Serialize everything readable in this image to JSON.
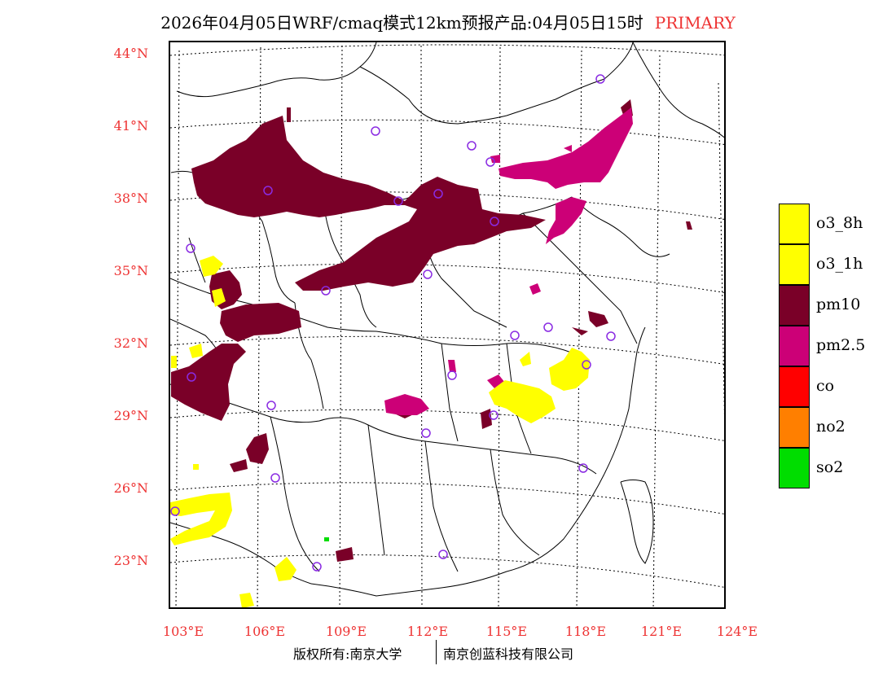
{
  "title": {
    "text": "2026年04月05日WRF/cmaq模式12km预报产品:04月05日15时",
    "tag": "PRIMARY"
  },
  "lat_labels": [
    "44°N",
    "41°N",
    "38°N",
    "35°N",
    "32°N",
    "29°N",
    "26°N",
    "23°N"
  ],
  "lon_labels": [
    "103°E",
    "106°E",
    "109°E",
    "112°E",
    "115°E",
    "118°E",
    "121°E",
    "124°E"
  ],
  "legend": [
    {
      "label": "o3_8h",
      "color": "#ffff00"
    },
    {
      "label": "o3_1h",
      "color": "#ffff00"
    },
    {
      "label": "pm10",
      "color": "#7a0028"
    },
    {
      "label": "pm2.5",
      "color": "#cc0077"
    },
    {
      "label": "co",
      "color": "#ff0000"
    },
    {
      "label": "no2",
      "color": "#ff7f00"
    },
    {
      "label": "so2",
      "color": "#00dd00"
    }
  ],
  "footer": {
    "left": "版权所有:南京大学",
    "right": "南京创蓝科技有限公司"
  }
}
